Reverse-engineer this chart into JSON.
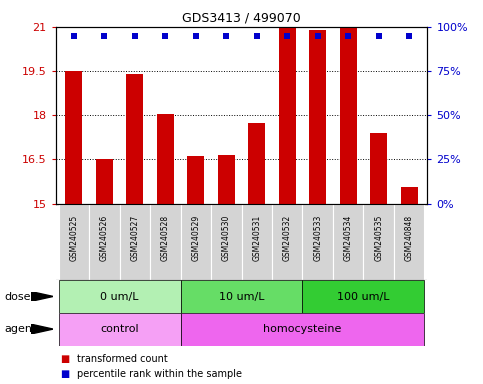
{
  "title": "GDS3413 / 499070",
  "samples": [
    "GSM240525",
    "GSM240526",
    "GSM240527",
    "GSM240528",
    "GSM240529",
    "GSM240530",
    "GSM240531",
    "GSM240532",
    "GSM240533",
    "GSM240534",
    "GSM240535",
    "GSM240848"
  ],
  "transformed_count": [
    19.5,
    16.5,
    19.4,
    18.05,
    16.6,
    16.65,
    17.75,
    21.0,
    20.9,
    21.0,
    17.4,
    15.55
  ],
  "percentile_rank": [
    95,
    95,
    95,
    95,
    95,
    95,
    95,
    95,
    95,
    95,
    95,
    95
  ],
  "bar_color": "#cc0000",
  "dot_color": "#0000cc",
  "ylim_left": [
    15,
    21
  ],
  "ylim_right": [
    0,
    100
  ],
  "yticks_left": [
    15,
    16.5,
    18,
    19.5,
    21
  ],
  "yticks_right": [
    0,
    25,
    50,
    75,
    100
  ],
  "ytick_labels_right": [
    "0%",
    "25%",
    "50%",
    "75%",
    "100%"
  ],
  "dose_groups": [
    {
      "label": "0 um/L",
      "start": 0,
      "end": 4,
      "color": "#b3f0b3"
    },
    {
      "label": "10 um/L",
      "start": 4,
      "end": 8,
      "color": "#66dd66"
    },
    {
      "label": "100 um/L",
      "start": 8,
      "end": 12,
      "color": "#33cc33"
    }
  ],
  "agent_groups": [
    {
      "label": "control",
      "start": 0,
      "end": 4,
      "color": "#f5a0f5"
    },
    {
      "label": "homocysteine",
      "start": 4,
      "end": 12,
      "color": "#ee66ee"
    }
  ],
  "legend_items": [
    {
      "label": "transformed count",
      "color": "#cc0000"
    },
    {
      "label": "percentile rank within the sample",
      "color": "#0000cc"
    }
  ],
  "bar_width": 0.55,
  "background_color": "#ffffff",
  "plot_bg_color": "#ffffff",
  "sample_box_color": "#d4d4d4",
  "dose_label": "dose",
  "agent_label": "agent"
}
